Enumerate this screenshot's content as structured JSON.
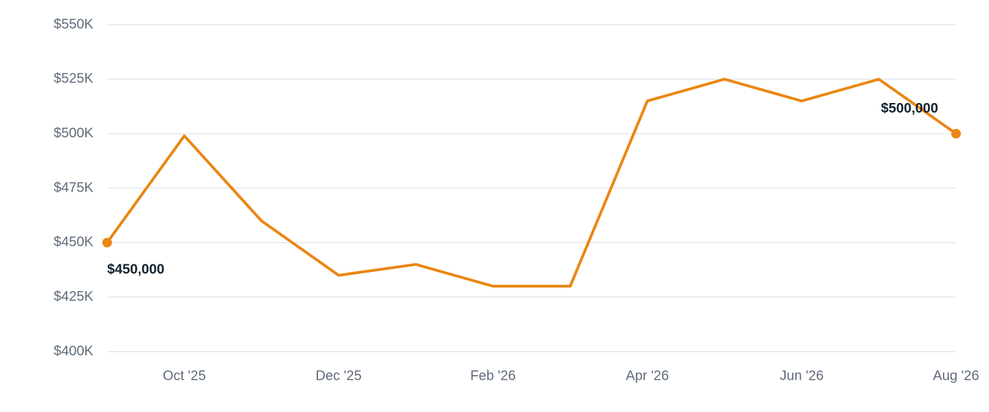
{
  "chart_data": {
    "type": "line",
    "categories": [
      null,
      "Oct '25",
      null,
      "Dec '25",
      null,
      "Feb '26",
      null,
      "Apr '26",
      null,
      "Jun '26",
      null,
      "Aug '26"
    ],
    "series": [
      {
        "color": "#ea8612",
        "values": [
          450000,
          499000,
          460000,
          435000,
          440000,
          430000,
          430000,
          515000,
          525000,
          515000,
          525000,
          500000
        ],
        "value_labels": [
          "$450,000",
          null,
          null,
          null,
          null,
          null,
          null,
          null,
          null,
          null,
          null,
          "$500,000"
        ]
      }
    ],
    "ylim": [
      400000,
      550000
    ],
    "yticks": [
      {
        "value": 400000,
        "label": "$400K"
      },
      {
        "value": 425000,
        "label": "$425K"
      },
      {
        "value": 450000,
        "label": "$450K"
      },
      {
        "value": 475000,
        "label": "$475K"
      },
      {
        "value": 500000,
        "label": "$500K"
      },
      {
        "value": 525000,
        "label": "$525K"
      },
      {
        "value": 550000,
        "label": "$550K"
      }
    ],
    "grid": true
  }
}
